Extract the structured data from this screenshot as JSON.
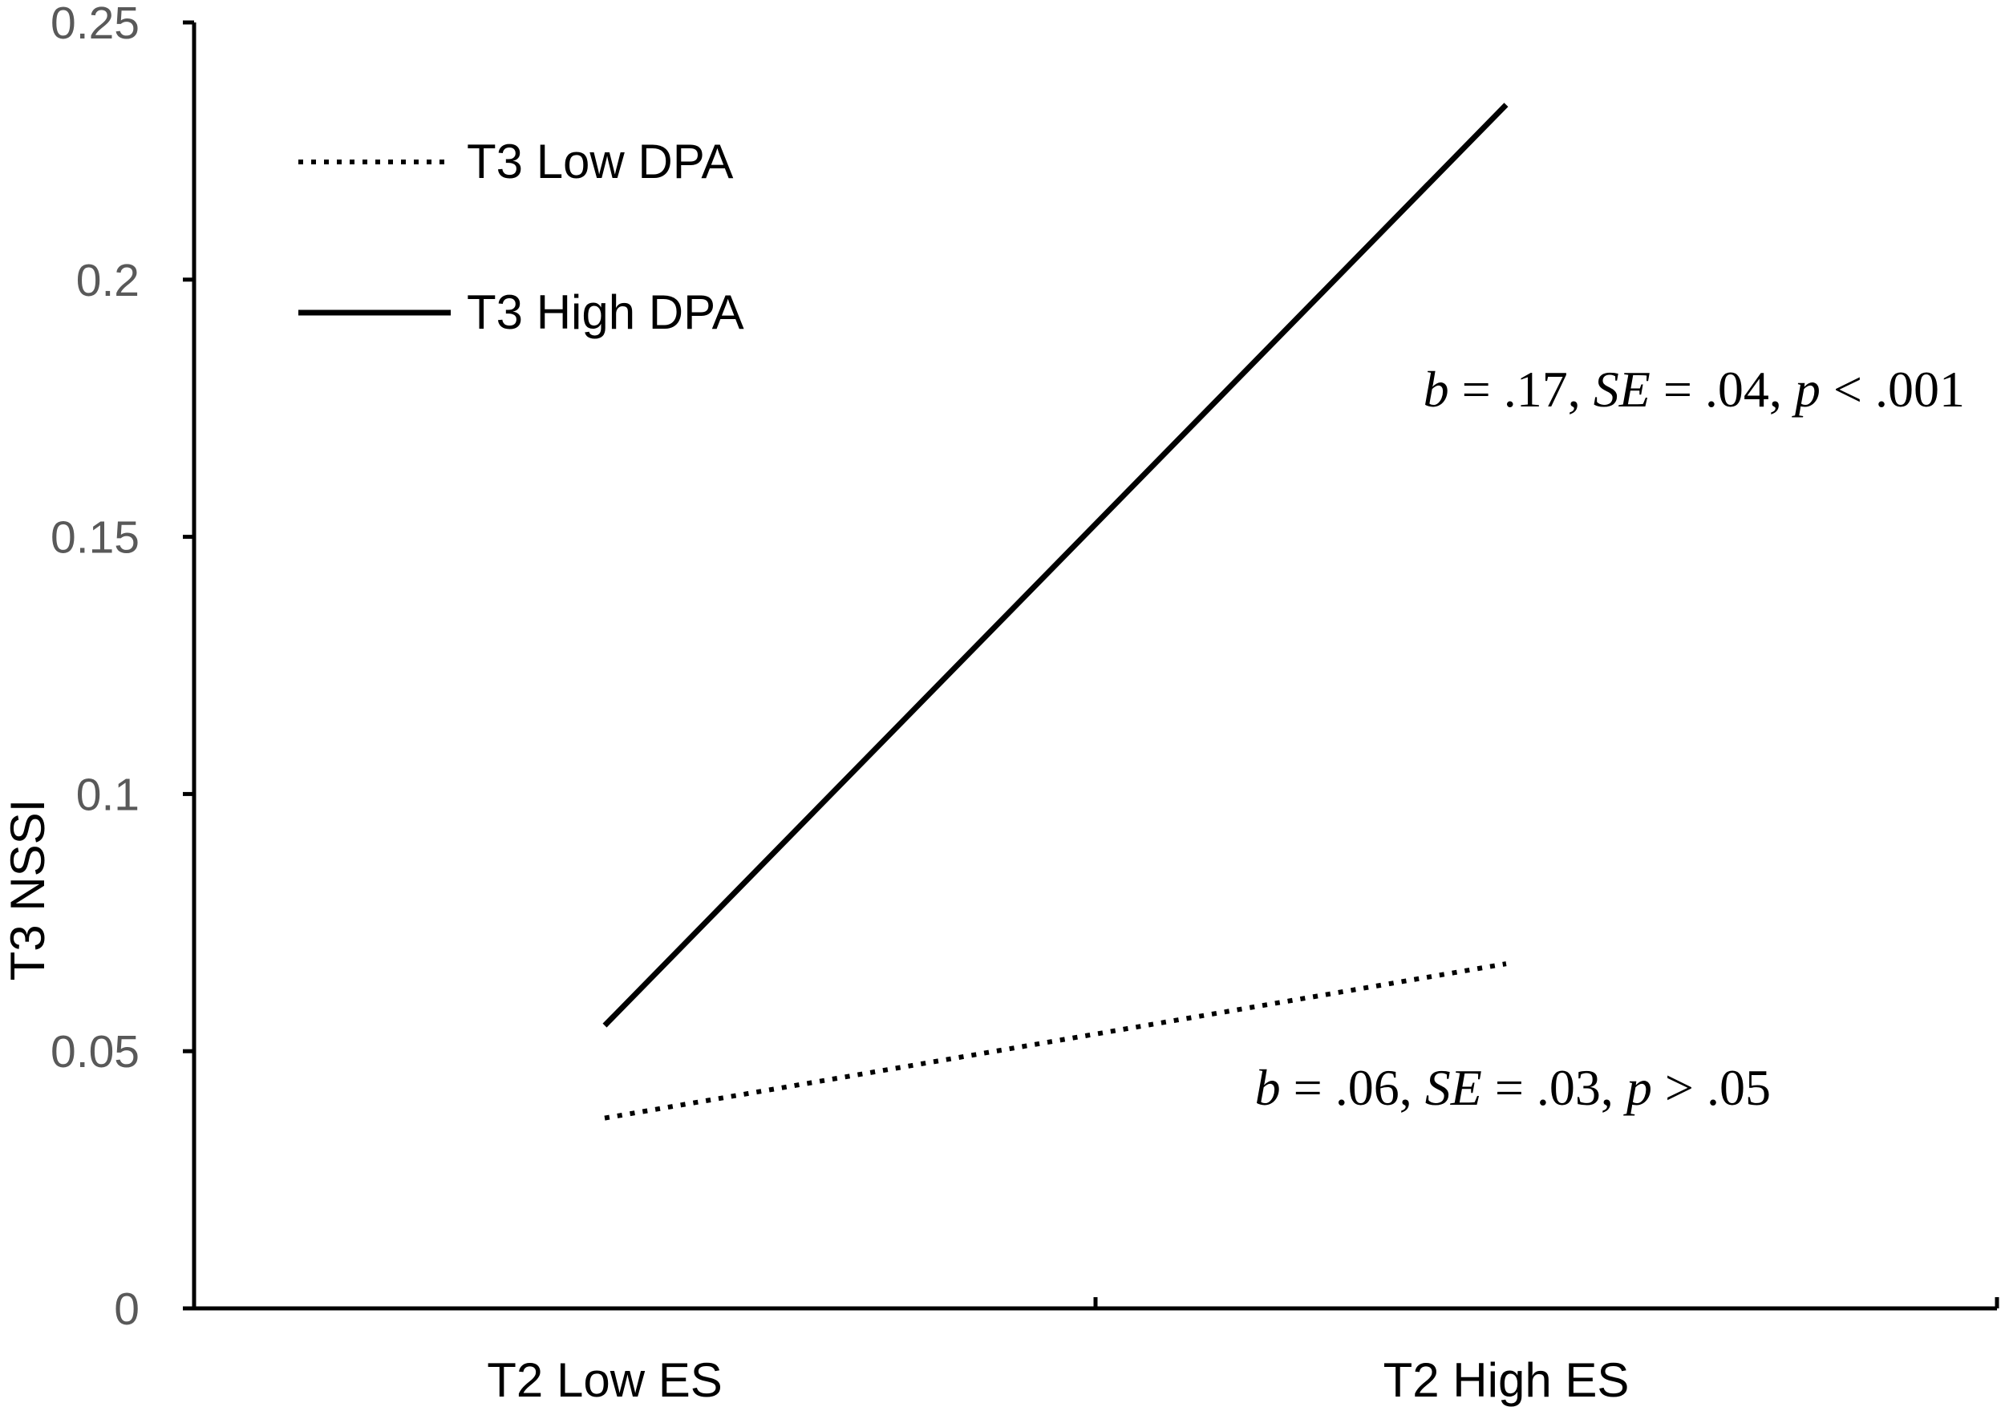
{
  "chart_data": {
    "type": "line",
    "title": "",
    "xlabel": "",
    "ylabel": "T3 NSSI",
    "categories": [
      "T2 Low ES",
      "T2 High ES"
    ],
    "ylim": [
      0,
      0.25
    ],
    "y_ticks": [
      0,
      0.05,
      0.1,
      0.15,
      0.2,
      0.25
    ],
    "y_tick_labels": [
      "0",
      "0.05",
      "0.1",
      "0.15",
      "0.2",
      "0.25"
    ],
    "grid": false,
    "legend_position": "top-left",
    "series": [
      {
        "name": "T3 Low DPA",
        "style": "dotted",
        "color": "#000000",
        "values": [
          0.037,
          0.067
        ],
        "annotation": {
          "b_label": "b",
          "b_value": " = .06, ",
          "se_label": "SE",
          "se_value": " = .03, ",
          "p_label": "p",
          "p_value": " > .05"
        }
      },
      {
        "name": "T3 High DPA",
        "style": "solid",
        "color": "#000000",
        "values": [
          0.055,
          0.234
        ],
        "annotation": {
          "b_label": "b",
          "b_value": " = .17, ",
          "se_label": "SE",
          "se_value": " = .04, ",
          "p_label": "p",
          "p_value": " < .001"
        }
      }
    ]
  }
}
